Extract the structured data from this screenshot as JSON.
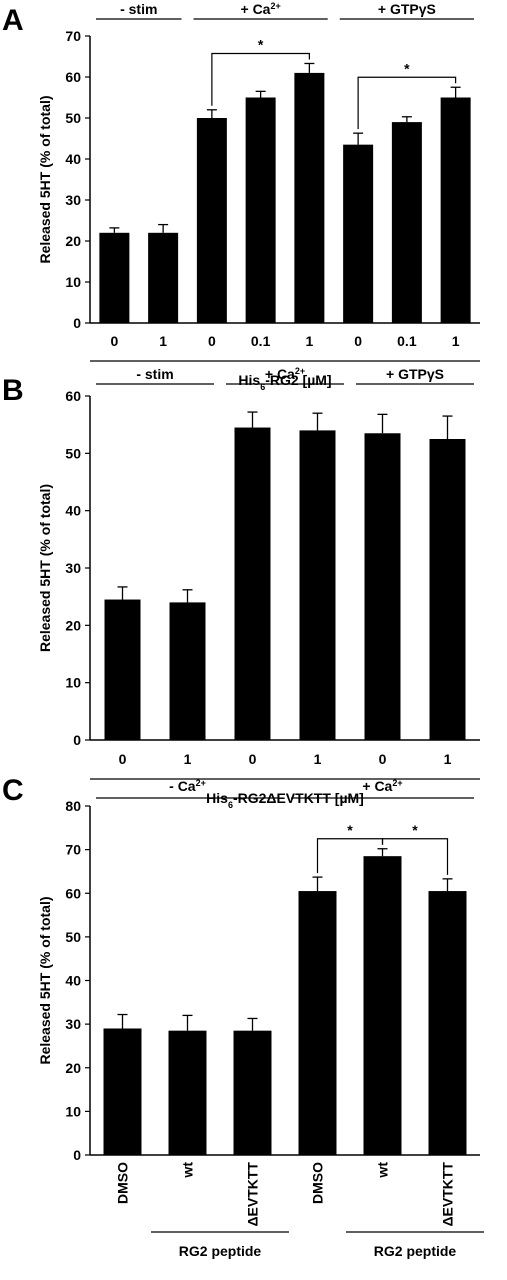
{
  "chart_data": [
    {
      "type": "bar",
      "panel_label": "A",
      "categories": [
        "0",
        "1",
        "0",
        "0.1",
        "1",
        "0",
        "0.1",
        "1"
      ],
      "values": [
        22,
        22,
        50,
        55,
        61,
        43.5,
        49,
        55
      ],
      "errors": [
        1.2,
        2,
        2,
        1.5,
        2.3,
        2.8,
        1.3,
        2.5
      ],
      "ylabel": "Released 5HT (% of total)",
      "xlabel_main": "His",
      "xlabel_sub": "6",
      "xlabel_rest": "-RG2 [µM]",
      "ylim": [
        0,
        70
      ],
      "yticks": [
        "0",
        "10",
        "20",
        "30",
        "40",
        "50",
        "60",
        "70"
      ],
      "groups": [
        {
          "label": "- stim",
          "sup": "",
          "from": 0,
          "to": 1
        },
        {
          "label": "+ Ca",
          "sup": "2+",
          "from": 2,
          "to": 4
        },
        {
          "label": "+ GTPγS",
          "sup": "",
          "from": 5,
          "to": 7
        }
      ],
      "significance": [
        {
          "from": 2,
          "to": 4,
          "label": "*"
        },
        {
          "from": 5,
          "to": 7,
          "label": "*"
        }
      ]
    },
    {
      "type": "bar",
      "panel_label": "B",
      "categories": [
        "0",
        "1",
        "0",
        "1",
        "0",
        "1"
      ],
      "values": [
        24.5,
        24,
        54.5,
        54,
        53.5,
        52.5
      ],
      "errors": [
        2.2,
        2.2,
        2.7,
        3,
        3.3,
        4
      ],
      "ylabel": "Released 5HT (% of total)",
      "xlabel_main": "His",
      "xlabel_sub": "6",
      "xlabel_rest": "-RG2ΔEVTKTT [µM]",
      "ylim": [
        0,
        60
      ],
      "yticks": [
        "0",
        "10",
        "20",
        "30",
        "40",
        "50",
        "60"
      ],
      "groups": [
        {
          "label": "- stim",
          "sup": "",
          "from": 0,
          "to": 1
        },
        {
          "label": "+ Ca",
          "sup": "2+",
          "from": 2,
          "to": 3
        },
        {
          "label": "+ GTPγS",
          "sup": "",
          "from": 4,
          "to": 5
        }
      ],
      "significance": []
    },
    {
      "type": "bar",
      "panel_label": "C",
      "categories": [
        "DMSO",
        "wt",
        "ΔEVTKTT",
        "DMSO",
        "wt",
        "ΔEVTKTT"
      ],
      "values": [
        29,
        28.5,
        28.5,
        60.5,
        68.5,
        60.5
      ],
      "errors": [
        3.2,
        3.5,
        2.8,
        3.2,
        1.7,
        2.8
      ],
      "ylabel": "Released 5HT (% of total)",
      "ylim": [
        0,
        80
      ],
      "yticks": [
        "0",
        "10",
        "20",
        "30",
        "40",
        "50",
        "60",
        "70",
        "80"
      ],
      "groups": [
        {
          "label": "- Ca",
          "sup": "2+",
          "from": 0,
          "to": 2
        },
        {
          "label": "+ Ca",
          "sup": "2+",
          "from": 3,
          "to": 5
        }
      ],
      "bottom_groups": [
        {
          "label": "RG2 peptide",
          "from": 1,
          "to": 2
        },
        {
          "label": "RG2 peptide",
          "from": 4,
          "to": 5
        }
      ],
      "significance": [
        {
          "from": 3,
          "to": 4,
          "label": "*"
        },
        {
          "from": 4,
          "to": 5,
          "label": "*"
        }
      ]
    }
  ]
}
